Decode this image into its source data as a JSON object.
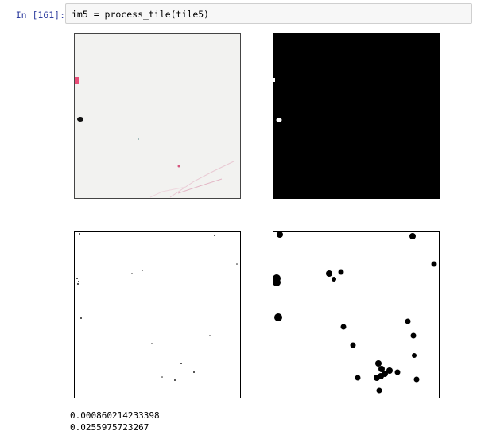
{
  "cell": {
    "prompt": "In [161]:",
    "code": "im5 = process_tile(tile5)"
  },
  "panels": [
    {
      "name": "original-tile-image",
      "content": "tissue-photo"
    },
    {
      "name": "binary-mask-image",
      "content": "mask-dark"
    },
    {
      "name": "edge-image",
      "content": "sparse-edges"
    },
    {
      "name": "dilated-blobs-image",
      "content": "dark-blobs"
    }
  ],
  "output": {
    "value1": "0.000860214233398",
    "value2": "0.0255975723267"
  }
}
